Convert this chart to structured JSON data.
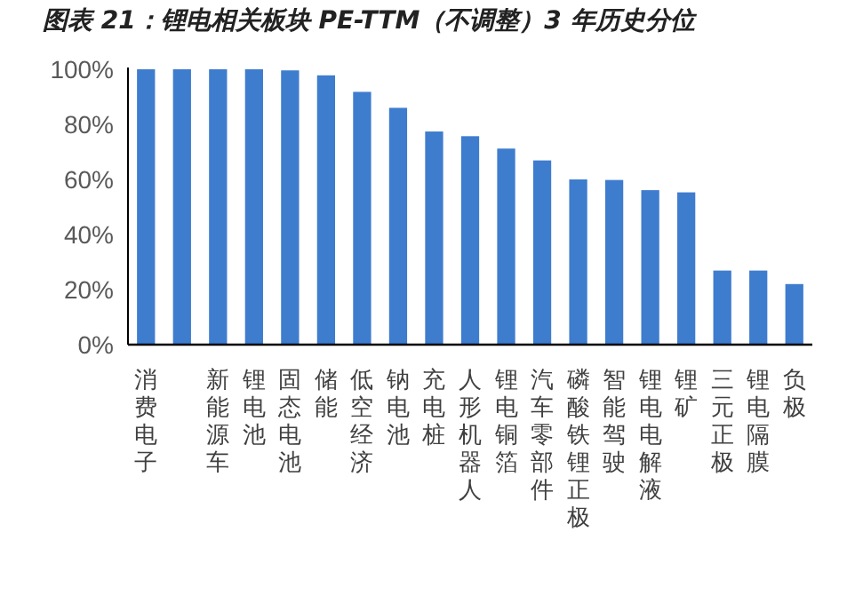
{
  "chart_data": {
    "type": "bar",
    "title": "图表 21：锂电相关板块 PE-TTM（不调整）3 年历史分位",
    "categories": [
      "消费电子",
      null,
      "新能源车",
      "锂电池",
      "固态电池",
      "储能",
      "低空经济",
      "钠电池",
      "充电桩",
      "人形机器人",
      "锂电铜箔",
      "汽车零部件",
      "磷酸铁锂正极",
      "智能驾驶",
      "锂电电解液",
      "锂矿",
      "三元正极",
      "锂电隔膜",
      "负极"
    ],
    "values": [
      100,
      100,
      100,
      100,
      99.6,
      97.8,
      91.8,
      86.0,
      77.4,
      75.7,
      71.2,
      66.9,
      60.0,
      59.8,
      56.1,
      55.3,
      26.9,
      26.9,
      22.0
    ],
    "color": "#3e7cce",
    "ylim": [
      0,
      100
    ],
    "yticks": [
      {
        "value": 0,
        "label": "0%"
      },
      {
        "value": 20,
        "label": "20%"
      },
      {
        "value": 40,
        "label": "40%"
      },
      {
        "value": 60,
        "label": "60%"
      },
      {
        "value": 80,
        "label": "80%"
      },
      {
        "value": 100,
        "label": "100%"
      }
    ],
    "grid": false
  }
}
